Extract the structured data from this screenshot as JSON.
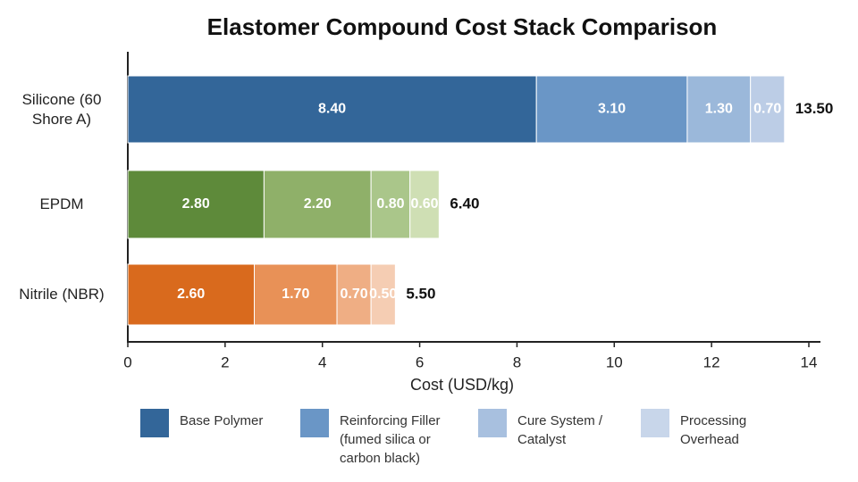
{
  "chart_data": {
    "type": "stacked-bar-horizontal",
    "title": "Elastomer Compound Cost Stack Comparison",
    "x_label": "Cost (USD/kg)",
    "categories": [
      "Silicone (60 Shore A)",
      "EPDM",
      "Nitrile (NBR)"
    ],
    "series": [
      {
        "name": "Base Polymer",
        "color": "#336699",
        "colors": [
          "#336699",
          "#5e8a3a",
          "#d96a1d"
        ],
        "values": [
          8.4,
          2.8,
          2.6
        ],
        "value_labels": [
          "8.40",
          "2.80",
          "2.60"
        ]
      },
      {
        "name": "Reinforcing Filler (fumed silica or carbon black)",
        "color": "#6a96c6",
        "colors": [
          "#6a96c6",
          "#8fb069",
          "#e89157"
        ],
        "values": [
          3.1,
          2.2,
          1.7
        ],
        "value_labels": [
          "3.10",
          "2.20",
          "1.70"
        ]
      },
      {
        "name": "Cure System / Catalyst",
        "color": "#a8c0df",
        "colors": [
          "#9bb8da",
          "#aac68a",
          "#efae84"
        ],
        "values": [
          1.3,
          0.8,
          0.7
        ],
        "value_labels": [
          "1.30",
          "0.80",
          "0.70"
        ]
      },
      {
        "name": "Processing Overhead",
        "color": "#c8d6ea",
        "colors": [
          "#bccde6",
          "#cfdfb4",
          "#f5cdb3"
        ],
        "values": [
          0.7,
          0.6,
          0.5
        ],
        "value_labels": [
          "0.70",
          "0.60",
          "0.50"
        ]
      }
    ],
    "totals": {
      "values": [
        13.5,
        6.4,
        5.5
      ],
      "value_labels": [
        "13.50",
        "6.40",
        "5.50"
      ]
    },
    "xlim": [
      0,
      14
    ],
    "xticks": [
      0,
      2,
      4,
      6,
      8,
      10,
      12,
      14
    ],
    "grid": false
  }
}
